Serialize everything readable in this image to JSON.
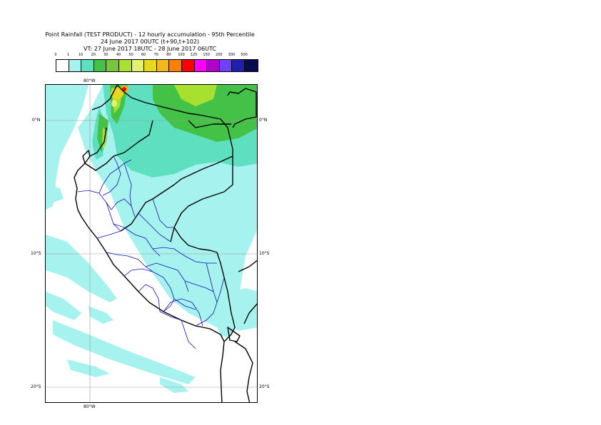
{
  "header": {
    "line1": "Point Rainfall (TEST PRODUCT) - 12 hourly accumulation - 95th Percentile",
    "line2": "24 June 2017 00UTC (t+90,t+102)",
    "line3": "VT: 27 June 2017 18UTC - 28 June 2017 06UTC"
  },
  "legend": {
    "labels": [
      "0",
      "1",
      "10",
      "20",
      "30",
      "40",
      "50",
      "60",
      "70",
      "80",
      "100",
      "125",
      "150",
      "200",
      "300",
      "500"
    ],
    "colors": [
      "#ffffff",
      "#a6f2ee",
      "#5ee0c0",
      "#44c248",
      "#78c63a",
      "#a8e030",
      "#e4f070",
      "#e6d820",
      "#f2b81c",
      "#ff7f00",
      "#ff0000",
      "#ff00ff",
      "#b000c8",
      "#7040ff",
      "#2020b0",
      "#0a0a50"
    ]
  },
  "map": {
    "lon_top": "80°W",
    "lon_bottom": "80°W",
    "lat_labels_left": [
      "0°N",
      "10°S",
      "20°S"
    ],
    "lat_labels_right": [
      "0°N",
      "10°S",
      "20°S"
    ]
  }
}
